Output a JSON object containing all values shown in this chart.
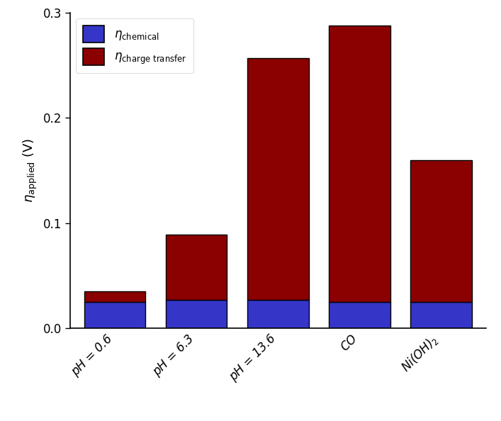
{
  "categories": [
    "pH = 0.6",
    "pH = 6.3",
    "pH = 13.6",
    "CO",
    "Ni(OH)$_2$"
  ],
  "chemical": [
    0.025,
    0.027,
    0.027,
    0.025,
    0.025
  ],
  "charge_transfer": [
    0.01,
    0.062,
    0.23,
    0.263,
    0.135
  ],
  "chemical_color": "#3535c8",
  "charge_transfer_color": "#8b0000",
  "bar_edge_color": "#000000",
  "bar_edge_width": 1.0,
  "bar_width": 0.75,
  "ylim": [
    0,
    0.3
  ],
  "yticks": [
    0.0,
    0.1,
    0.2,
    0.3
  ],
  "ylabel": "$\\eta_{\\mathrm{applied}}$ (V)",
  "legend_chemical": "$\\eta_{\\mathrm{chemical}}$",
  "legend_charge_transfer": "$\\eta_{\\mathrm{charge\\ transfer}}$",
  "background_color": "#ffffff",
  "fig_width": 7.07,
  "fig_height": 5.94,
  "dpi": 100
}
